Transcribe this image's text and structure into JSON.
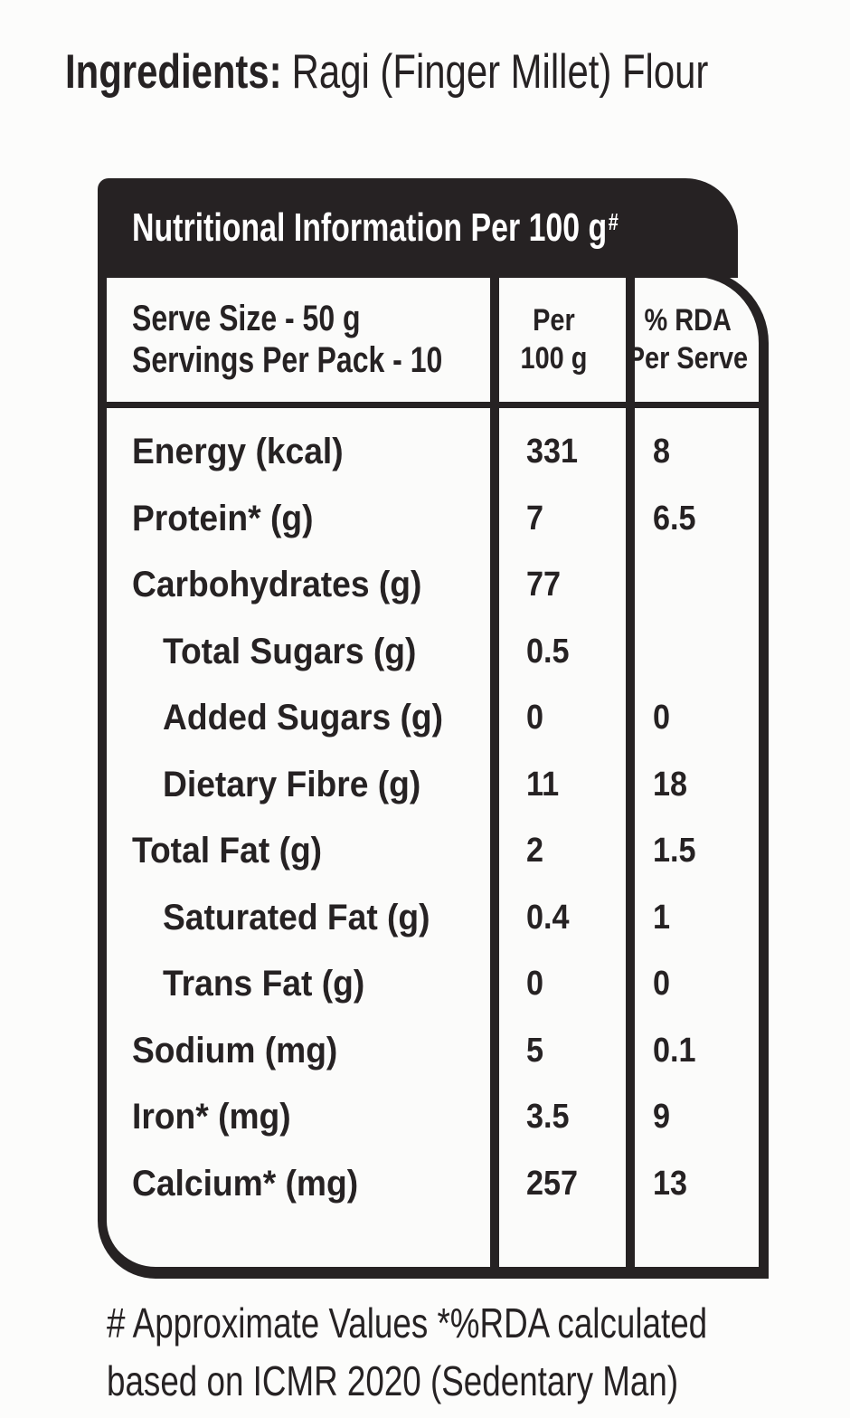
{
  "page": {
    "ingredients_label": "Ingredients:",
    "ingredients_value": "Ragi (Finger Millet) Flour"
  },
  "table": {
    "title": "Nutritional Information Per 100 g",
    "title_superscript": "#",
    "header": {
      "col1_line1": "Serve Size - 50 g",
      "col1_line2": "Servings Per Pack - 10",
      "col2_line1": "Per",
      "col2_line2": "100 g",
      "col3_line1": "% RDA",
      "col3_line2": "Per Serve"
    },
    "rows": [
      {
        "label": "Energy (kcal)",
        "per_100g": "331",
        "rda_per_serve": "8",
        "indent": false
      },
      {
        "label": "Protein* (g)",
        "per_100g": "7",
        "rda_per_serve": "6.5",
        "indent": false
      },
      {
        "label": "Carbohydrates (g)",
        "per_100g": "77",
        "rda_per_serve": "",
        "indent": false
      },
      {
        "label": "Total Sugars (g)",
        "per_100g": "0.5",
        "rda_per_serve": "",
        "indent": true
      },
      {
        "label": "Added Sugars (g)",
        "per_100g": "0",
        "rda_per_serve": "0",
        "indent": true
      },
      {
        "label": "Dietary Fibre (g)",
        "per_100g": "11",
        "rda_per_serve": "18",
        "indent": true
      },
      {
        "label": "Total Fat (g)",
        "per_100g": "2",
        "rda_per_serve": "1.5",
        "indent": false
      },
      {
        "label": "Saturated Fat (g)",
        "per_100g": "0.4",
        "rda_per_serve": "1",
        "indent": true
      },
      {
        "label": "Trans Fat (g)",
        "per_100g": "0",
        "rda_per_serve": "0",
        "indent": true
      },
      {
        "label": "Sodium (mg)",
        "per_100g": "5",
        "rda_per_serve": "0.1",
        "indent": false
      },
      {
        "label": "Iron* (mg)",
        "per_100g": "3.5",
        "rda_per_serve": "9",
        "indent": false
      },
      {
        "label": "Calcium* (mg)",
        "per_100g": "257",
        "rda_per_serve": "13",
        "indent": false
      }
    ]
  },
  "footnote": {
    "line1": "# Approximate Values *%RDA calculated",
    "line2": "based on ICMR 2020 (Sedentary Man)"
  },
  "colors": {
    "ink": "#262223",
    "band_text": "#ffffff",
    "background": "#fcfcfb"
  }
}
